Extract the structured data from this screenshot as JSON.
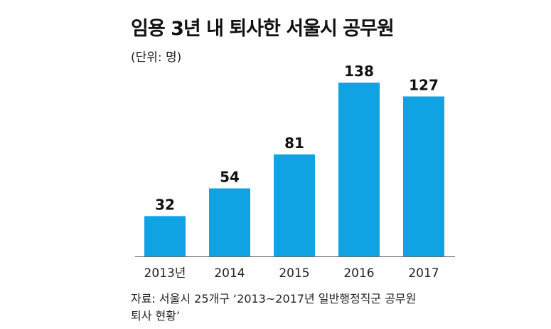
{
  "title": "임용 3년 내 퇴사한 서울시 공무원",
  "unit_label": "(단위: 명)",
  "source_lines": [
    "자료: 서울시 25개구 ‘2013~2017년 일반행정직군 공무원",
    "퇴사 현황’"
  ],
  "colors": {
    "bar": "#0fa3e3",
    "text": "#111111"
  },
  "chart_data": {
    "type": "bar",
    "title": "임용 3년 내 퇴사한 서울시 공무원",
    "subtitle": "(단위: 명)",
    "categories": [
      "2013년",
      "2014",
      "2015",
      "2016",
      "2017"
    ],
    "values": [
      32,
      54,
      81,
      138,
      127
    ],
    "data_labels": [
      "32",
      "54",
      "81",
      "138",
      "127"
    ],
    "ylim": [
      0,
      138
    ],
    "xlabel": "",
    "ylabel": "",
    "grid": false,
    "legend": "none"
  }
}
